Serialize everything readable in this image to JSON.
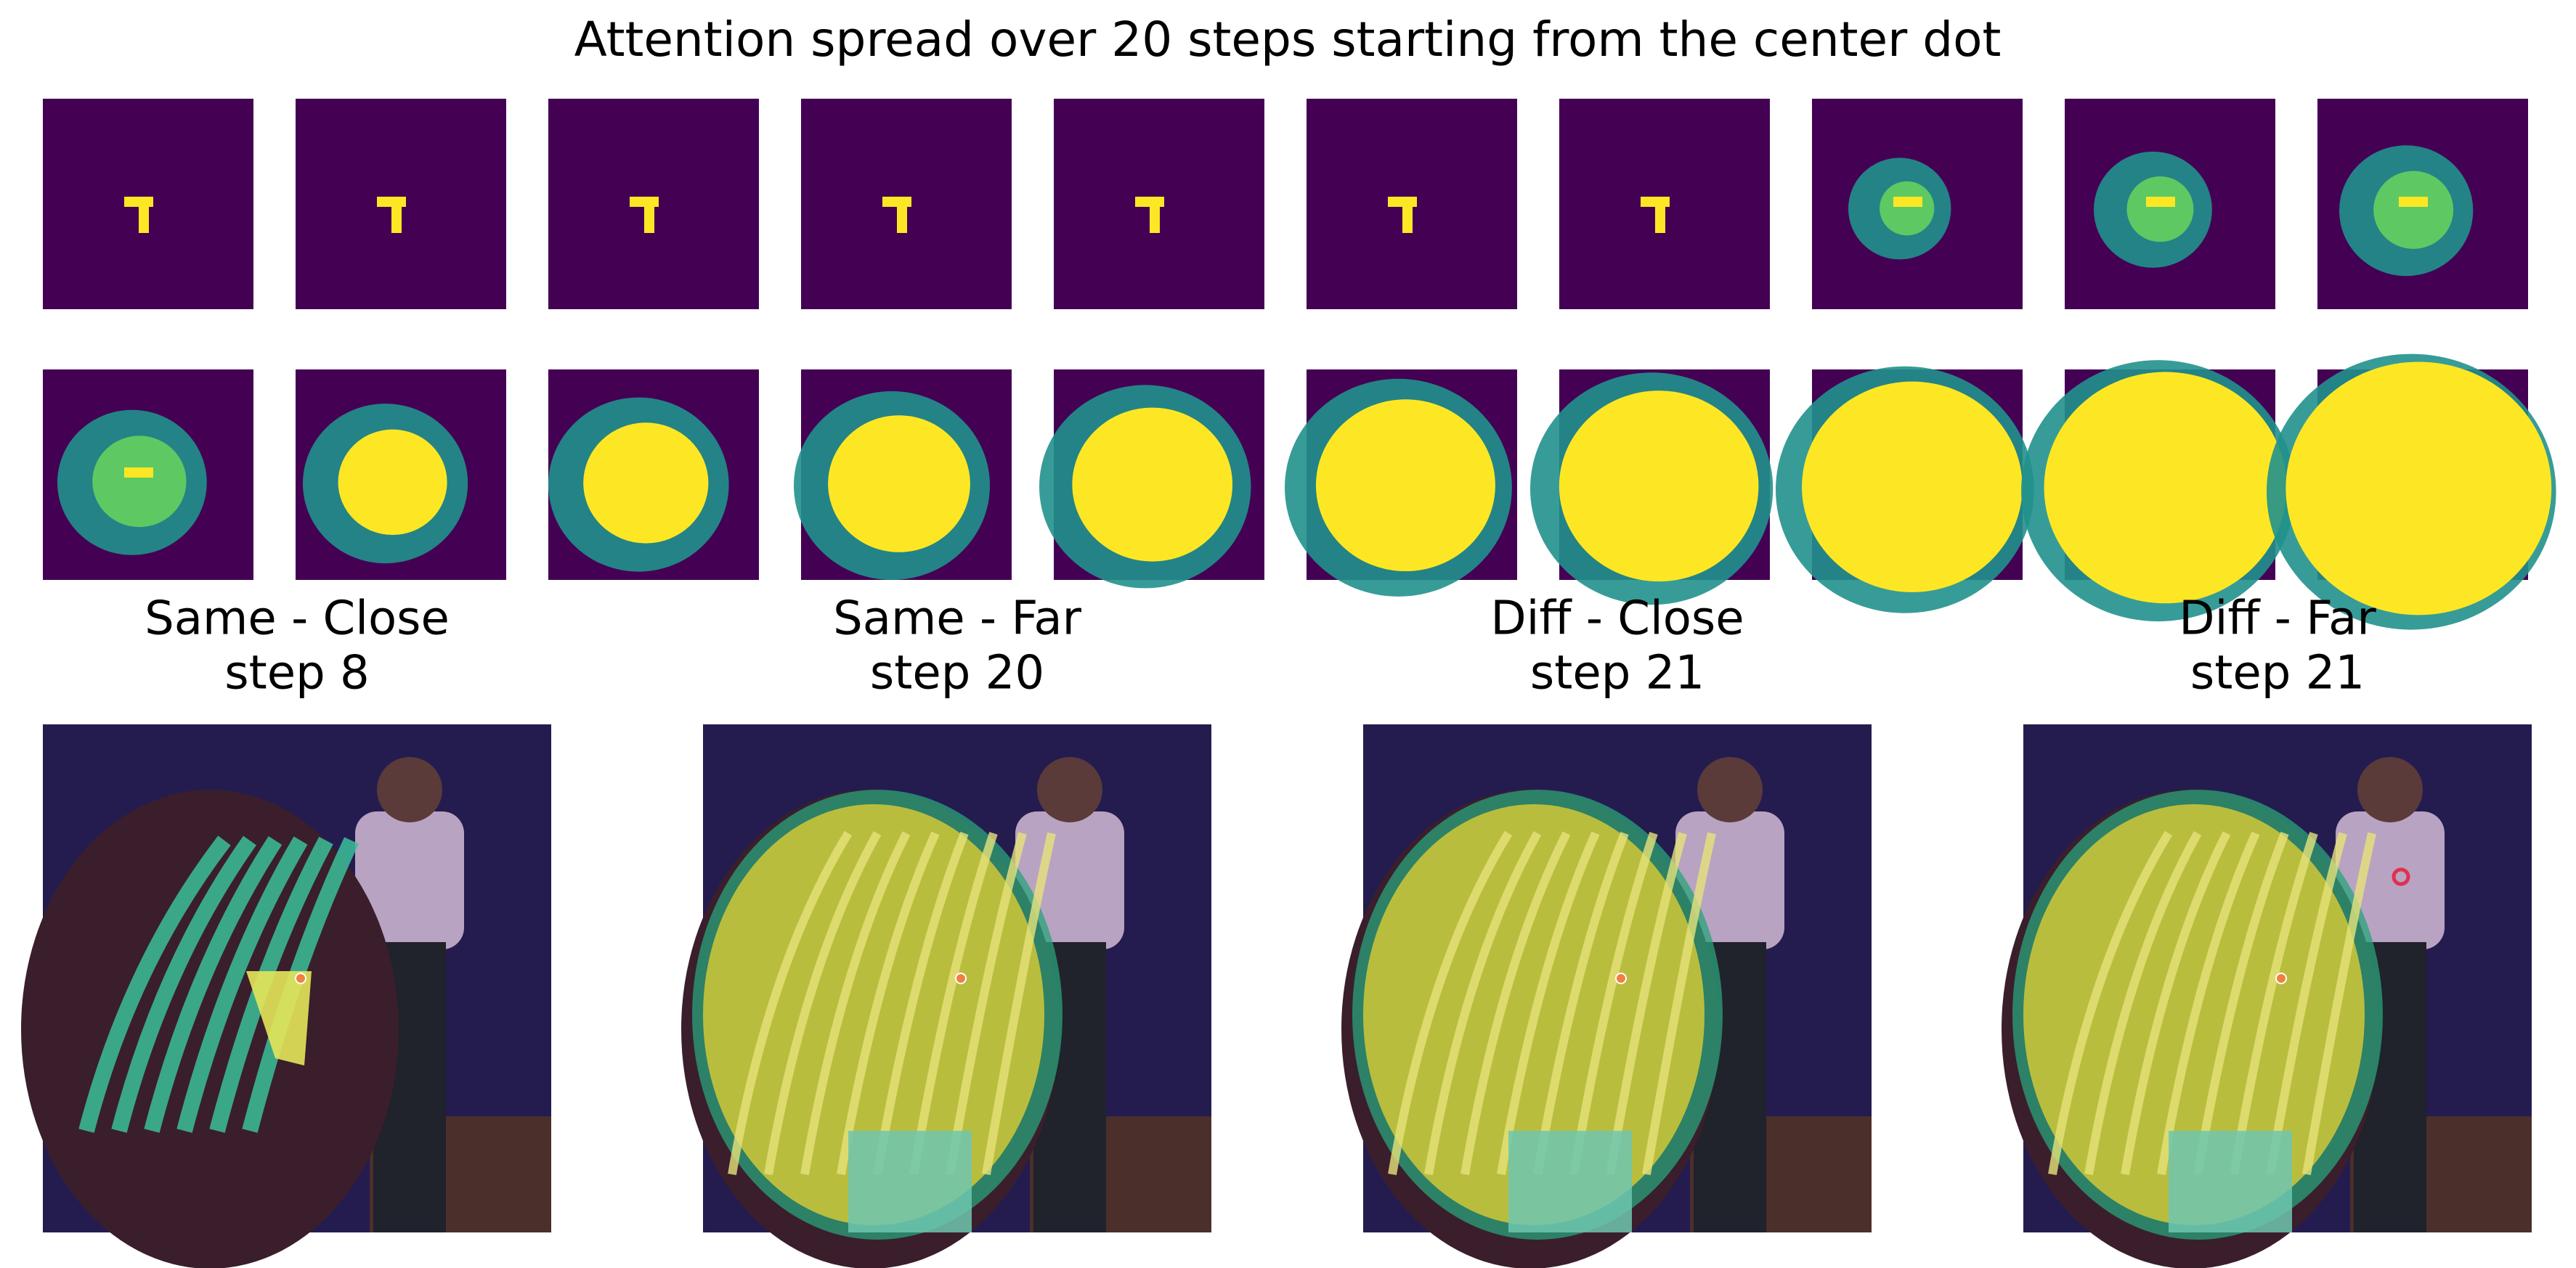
{
  "header": {
    "title": "Attention spread over 20 steps starting from the center dot"
  },
  "panels": [
    {
      "label": "Same - Close",
      "step": "step 8"
    },
    {
      "label": "Same - Far",
      "step": "step 20"
    },
    {
      "label": "Diff - Close",
      "step": "step 21"
    },
    {
      "label": "Diff - Far",
      "step": "step 21"
    }
  ]
}
